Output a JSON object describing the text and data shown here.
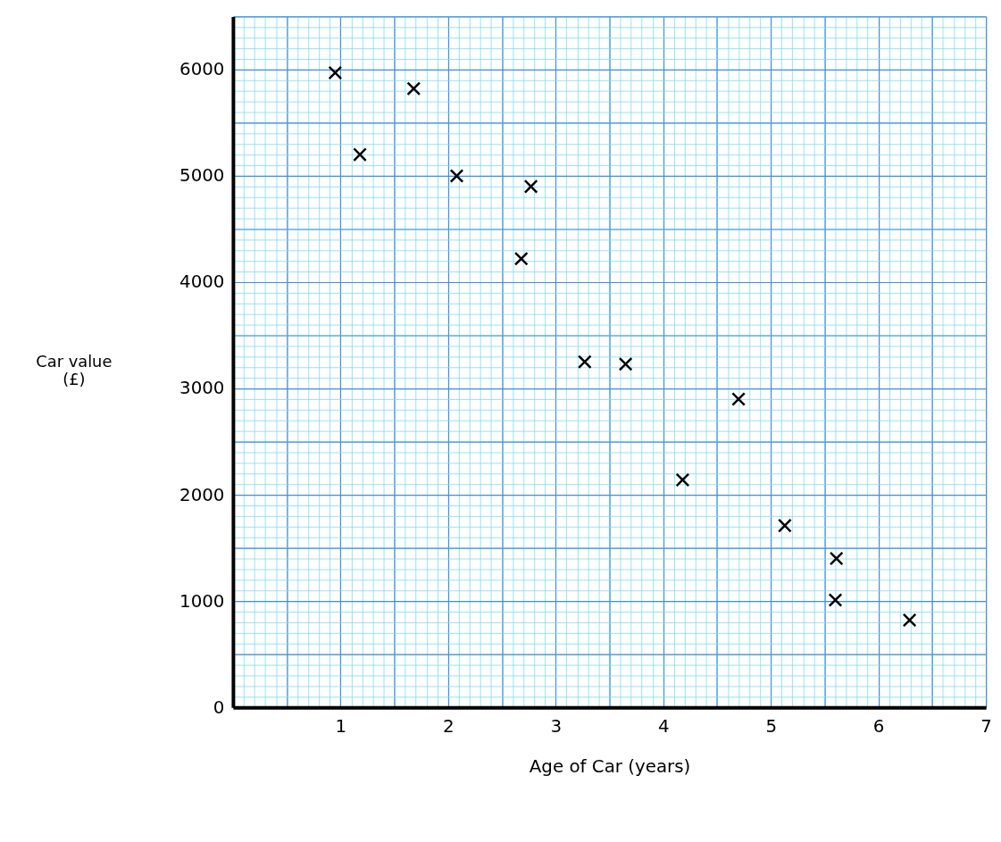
{
  "chart_data": {
    "type": "scatter",
    "xlabel": "Age of Car (years)",
    "ylabel": "Car value\n(£)",
    "x": [
      0.95,
      1.18,
      1.68,
      2.08,
      2.77,
      2.68,
      3.27,
      3.65,
      4.7,
      4.18,
      5.13,
      5.61,
      5.6,
      6.29
    ],
    "values": [
      5970,
      5200,
      5820,
      5000,
      4900,
      4220,
      3250,
      3230,
      2900,
      2140,
      1710,
      1400,
      1010,
      820
    ],
    "color": "#000000",
    "marker": "cross",
    "grid": true,
    "xlim": [
      0,
      7
    ],
    "ylim": [
      0,
      6500
    ],
    "xticks": [
      1,
      2,
      3,
      4,
      5,
      6,
      7
    ],
    "yticks": [
      0,
      1000,
      2000,
      3000,
      4000,
      5000,
      6000
    ]
  }
}
